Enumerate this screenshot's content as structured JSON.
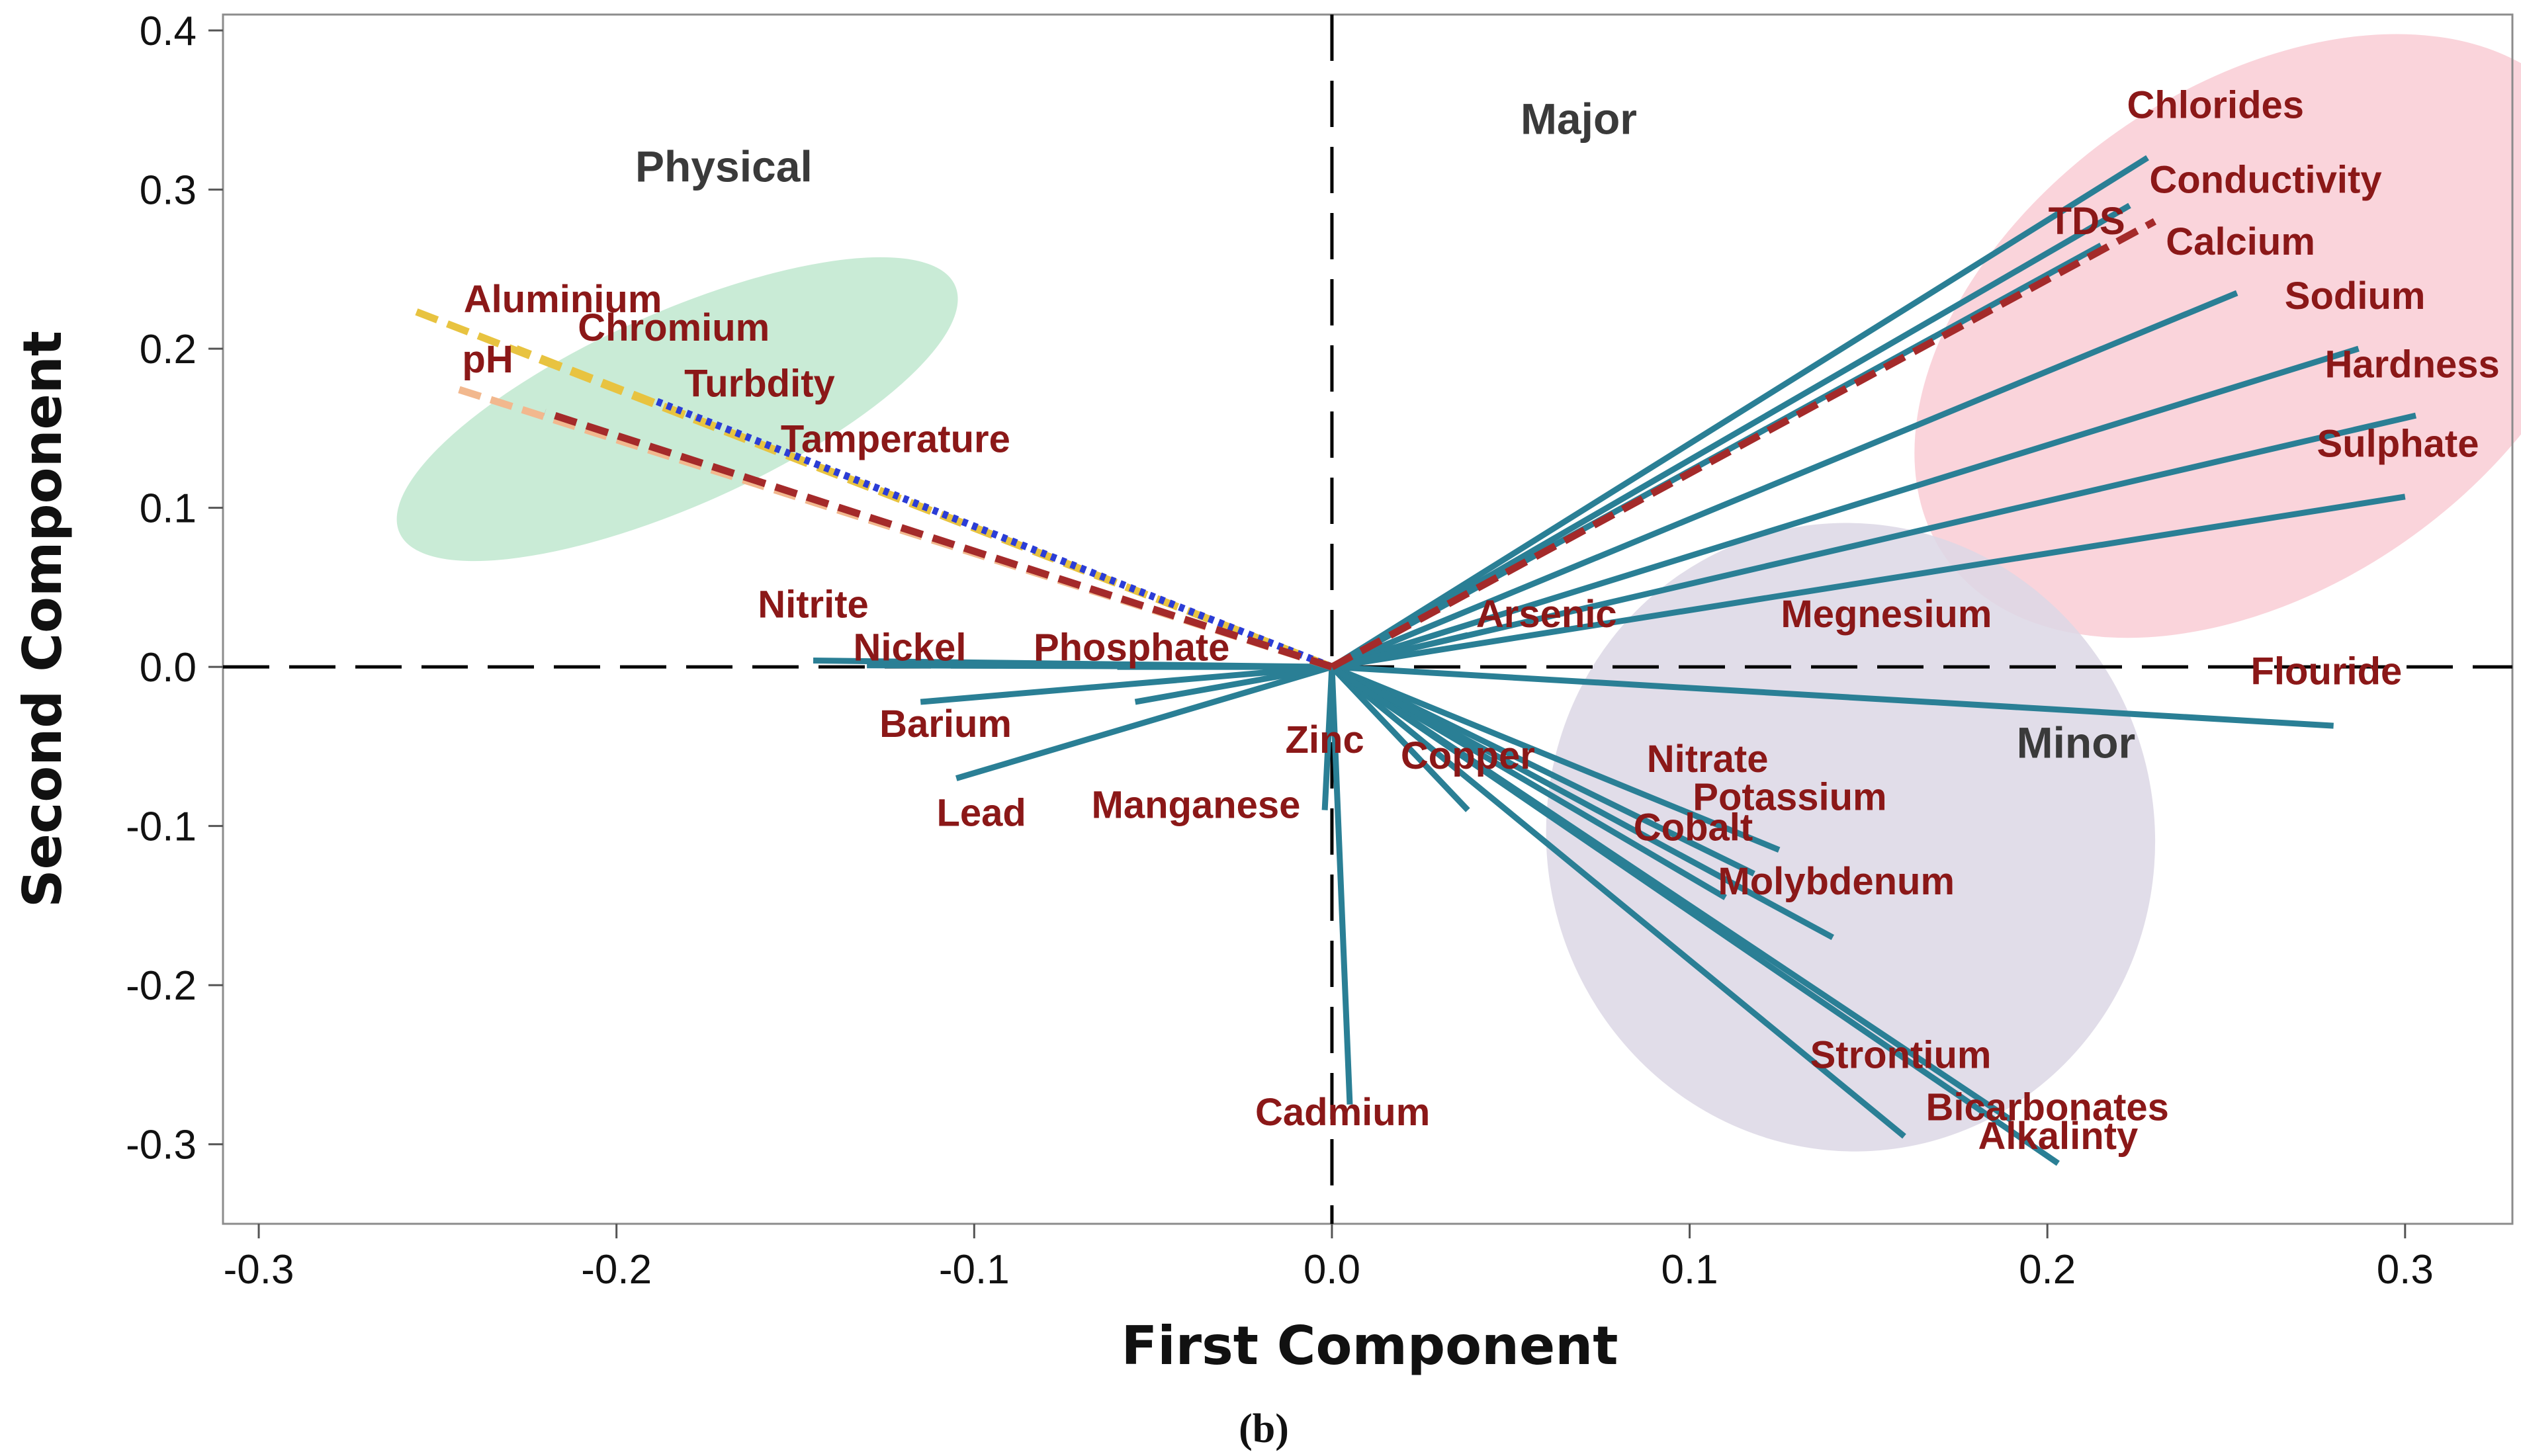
{
  "chart_data": {
    "type": "scatter",
    "subtype": "biplot-loadings",
    "xlabel": "First Component",
    "ylabel": "Second Component",
    "caption": "(b)",
    "xlim": [
      -0.31,
      0.33
    ],
    "ylim": [
      -0.35,
      0.41
    ],
    "xticks": [
      -0.3,
      -0.2,
      -0.1,
      0.0,
      0.1,
      0.2,
      0.3
    ],
    "yticks": [
      -0.3,
      -0.2,
      -0.1,
      0.0,
      0.1,
      0.2,
      0.3,
      0.4
    ],
    "xtick_labels": [
      "-0.3",
      "-0.2",
      "-0.1",
      "0.0",
      "0.1",
      "0.2",
      "0.3"
    ],
    "ytick_labels": [
      "-0.3",
      "-0.2",
      "-0.1",
      "0.0",
      "0.1",
      "0.2",
      "0.3",
      "0.4"
    ],
    "colors": {
      "vector": "#2a7f95",
      "label": "#8b1818",
      "frame": "#8c8c8c",
      "physical_fill": "#bfe8cf",
      "major_fill": "#f9cdd5",
      "minor_fill": "#dcd7e5",
      "dash_yellow": "#e8c340",
      "dash_peach": "#f2b88e",
      "dash_red": "#a42a2a",
      "dash_blue": "#2b3dd6"
    },
    "groups": [
      {
        "name": "Physical",
        "x": -0.17,
        "y": 0.305,
        "color": "physical_fill"
      },
      {
        "name": "Major",
        "x": 0.069,
        "y": 0.335,
        "color": "major_fill"
      },
      {
        "name": "Minor",
        "x": 0.208,
        "y": -0.057,
        "color": "minor_fill"
      }
    ],
    "ellipses": [
      {
        "group": "Physical",
        "cx": -0.183,
        "cy": 0.162,
        "rx": 0.085,
        "ry": 0.027,
        "angle_deg": 24
      },
      {
        "group": "Major",
        "cx": 0.26,
        "cy": 0.208,
        "rx": 0.07,
        "ry": 0.108,
        "angle_deg": -55
      },
      {
        "group": "Minor",
        "cx": 0.145,
        "cy": -0.107,
        "rx": 0.085,
        "ry": 0.088,
        "angle_deg": 12
      }
    ],
    "series": [
      {
        "name": "Aluminium",
        "x": -0.258,
        "y": 0.225,
        "style": "dashed",
        "color": "dash_yellow",
        "label_x": -0.215,
        "label_y": 0.223
      },
      {
        "name": "Chromium",
        "x": -0.228,
        "y": 0.2,
        "style": "dashed",
        "color": "dash_yellow",
        "label_x": -0.184,
        "label_y": 0.205
      },
      {
        "name": "pH",
        "x": -0.245,
        "y": 0.175,
        "style": "dashed",
        "color": "dash_peach",
        "label_x": -0.236,
        "label_y": 0.185
      },
      {
        "name": "Turbdity",
        "x": -0.19,
        "y": 0.168,
        "style": "dotted",
        "color": "dash_blue",
        "label_x": -0.16,
        "label_y": 0.17
      },
      {
        "name": "Tamperature",
        "x": -0.22,
        "y": 0.16,
        "style": "dashed",
        "color": "dash_red",
        "label_x": -0.122,
        "label_y": 0.135
      },
      {
        "name": "Chlorides",
        "x": 0.228,
        "y": 0.32,
        "style": "solid",
        "color": "vector",
        "label_x": 0.247,
        "label_y": 0.345
      },
      {
        "name": "Conductivity",
        "x": 0.223,
        "y": 0.29,
        "style": "solid",
        "color": "vector",
        "label_x": 0.261,
        "label_y": 0.298
      },
      {
        "name": "TDS",
        "x": 0.23,
        "y": 0.28,
        "style": "dashed",
        "color": "dash_red",
        "label_x": 0.211,
        "label_y": 0.272
      },
      {
        "name": "Calcium",
        "x": 0.215,
        "y": 0.265,
        "style": "solid",
        "color": "vector",
        "label_x": 0.254,
        "label_y": 0.259
      },
      {
        "name": "Sodium",
        "x": 0.253,
        "y": 0.235,
        "style": "solid",
        "color": "vector",
        "label_x": 0.286,
        "label_y": 0.225
      },
      {
        "name": "Hardness",
        "x": 0.287,
        "y": 0.2,
        "style": "solid",
        "color": "vector",
        "label_x": 0.302,
        "label_y": 0.182
      },
      {
        "name": "Sulphate",
        "x": 0.303,
        "y": 0.158,
        "style": "solid",
        "color": "vector",
        "label_x": 0.298,
        "label_y": 0.132
      },
      {
        "name": "Flouride",
        "x": 0.28,
        "y": -0.037,
        "style": "solid",
        "color": "vector",
        "label_x": 0.278,
        "label_y": -0.011
      },
      {
        "name": "Arsenic",
        "x": 0.038,
        "y": 0.02,
        "style": "solid",
        "color": "vector",
        "label_x": 0.06,
        "label_y": 0.025
      },
      {
        "name": "Megnesium",
        "x": 0.3,
        "y": 0.107,
        "style": "solid",
        "color": "vector",
        "label_x": 0.155,
        "label_y": 0.025
      },
      {
        "name": "Nitrite",
        "x": -0.145,
        "y": 0.004,
        "style": "solid",
        "color": "vector",
        "label_x": -0.145,
        "label_y": 0.031
      },
      {
        "name": "Nickel",
        "x": -0.13,
        "y": 0.001,
        "style": "solid",
        "color": "vector",
        "label_x": -0.118,
        "label_y": 0.004
      },
      {
        "name": "Phosphate",
        "x": -0.06,
        "y": 0.0,
        "style": "solid",
        "color": "vector",
        "label_x": -0.056,
        "label_y": 0.004
      },
      {
        "name": "Barium",
        "x": -0.115,
        "y": -0.022,
        "style": "solid",
        "color": "vector",
        "label_x": -0.108,
        "label_y": -0.044
      },
      {
        "name": "Lead",
        "x": -0.105,
        "y": -0.07,
        "style": "solid",
        "color": "vector",
        "label_x": -0.098,
        "label_y": -0.1
      },
      {
        "name": "Zinc",
        "x": -0.055,
        "y": -0.022,
        "style": "solid",
        "color": "vector",
        "label_x": -0.002,
        "label_y": -0.054
      },
      {
        "name": "Manganese",
        "x": -0.002,
        "y": -0.09,
        "style": "solid",
        "color": "vector",
        "label_x": -0.038,
        "label_y": -0.095
      },
      {
        "name": "Copper",
        "x": 0.038,
        "y": -0.09,
        "style": "solid",
        "color": "vector",
        "label_x": 0.038,
        "label_y": -0.064
      },
      {
        "name": "Nitrate",
        "x": 0.125,
        "y": -0.115,
        "style": "solid",
        "color": "vector",
        "label_x": 0.105,
        "label_y": -0.066
      },
      {
        "name": "Potassium",
        "x": 0.118,
        "y": -0.13,
        "style": "solid",
        "color": "vector",
        "label_x": 0.128,
        "label_y": -0.09
      },
      {
        "name": "Cobalt",
        "x": 0.11,
        "y": -0.145,
        "style": "solid",
        "color": "vector",
        "label_x": 0.101,
        "label_y": -0.109
      },
      {
        "name": "Molybdenum",
        "x": 0.14,
        "y": -0.17,
        "style": "solid",
        "color": "vector",
        "label_x": 0.141,
        "label_y": -0.143
      },
      {
        "name": "Strontium",
        "x": 0.16,
        "y": -0.295,
        "style": "solid",
        "color": "vector",
        "label_x": 0.159,
        "label_y": -0.252
      },
      {
        "name": "Bicarbonates",
        "x": 0.19,
        "y": -0.285,
        "style": "solid",
        "color": "vector",
        "label_x": 0.2,
        "label_y": -0.285
      },
      {
        "name": "Alkalinty",
        "x": 0.203,
        "y": -0.312,
        "style": "solid",
        "color": "vector",
        "label_x": 0.203,
        "label_y": -0.303
      },
      {
        "name": "Cadmium",
        "x": 0.005,
        "y": -0.275,
        "style": "solid",
        "color": "vector",
        "label_x": 0.003,
        "label_y": -0.288
      }
    ]
  }
}
